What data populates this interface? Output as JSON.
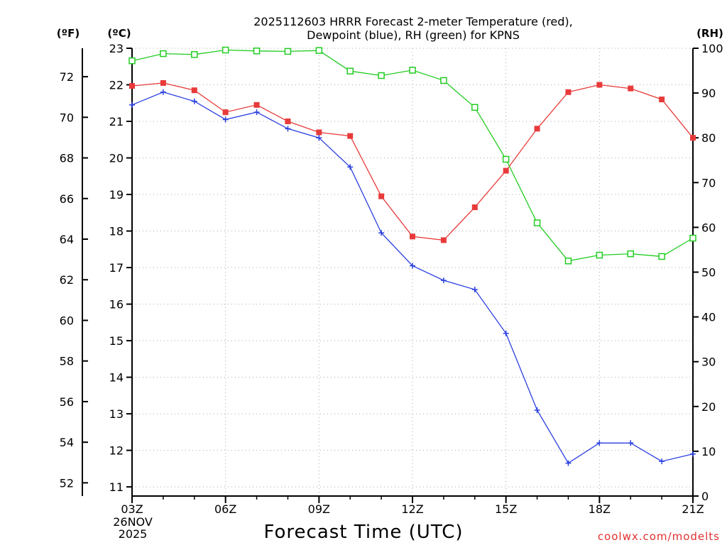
{
  "chart_data": {
    "type": "line",
    "title_line1": "2025112603 HRRR Forecast 2-meter Temperature (red),",
    "title_line2": "Dewpoint (blue), RH (green) for KPNS",
    "unit_f": "(ºF)",
    "unit_c": "(ºC)",
    "unit_rh": "(RH)",
    "xlabel": "Forecast Time (UTC)",
    "date_line1": "26NOV",
    "date_line2": "2025",
    "credit": "coolwx.com/modelts",
    "x_hours": [
      3,
      4,
      5,
      6,
      7,
      8,
      9,
      10,
      11,
      12,
      13,
      14,
      15,
      16,
      17,
      18,
      19,
      20,
      21
    ],
    "x_ticks": [
      {
        "hour": 3,
        "label": "03Z"
      },
      {
        "hour": 6,
        "label": "06Z"
      },
      {
        "hour": 9,
        "label": "09Z"
      },
      {
        "hour": 12,
        "label": "12Z"
      },
      {
        "hour": 15,
        "label": "15Z"
      },
      {
        "hour": 18,
        "label": "18Z"
      },
      {
        "hour": 21,
        "label": "21Z"
      }
    ],
    "xlim": [
      3,
      21
    ],
    "ylim_c": [
      10.75,
      23
    ],
    "ylim_rh": [
      0,
      100
    ],
    "c_ticks": [
      11,
      12,
      13,
      14,
      15,
      16,
      17,
      18,
      19,
      20,
      21,
      22,
      23
    ],
    "f_ticks": [
      52,
      54,
      56,
      58,
      60,
      62,
      64,
      66,
      68,
      70,
      72
    ],
    "rh_ticks": [
      0,
      10,
      20,
      30,
      40,
      50,
      60,
      70,
      80,
      90,
      100
    ],
    "series": [
      {
        "name": "Temperature",
        "color": "#e83a3a",
        "marker": "filled-square",
        "values_c": [
          21.97,
          22.05,
          21.85,
          21.25,
          21.45,
          21.0,
          20.7,
          20.6,
          18.95,
          17.85,
          17.75,
          18.65,
          19.65,
          20.8,
          21.8,
          22.0,
          21.9,
          21.6,
          20.55
        ]
      },
      {
        "name": "Dewpoint",
        "color": "#2a3fe0",
        "marker": "plus",
        "values_c": [
          21.45,
          21.8,
          21.55,
          21.05,
          21.25,
          20.8,
          20.55,
          19.75,
          17.95,
          17.05,
          16.65,
          16.4,
          15.2,
          13.1,
          11.65,
          12.2,
          12.2,
          11.7,
          11.9
        ]
      },
      {
        "name": "RH",
        "color": "#22cc22",
        "marker": "open-square",
        "values_rh": [
          97.2,
          98.8,
          98.6,
          99.6,
          99.4,
          99.3,
          99.5,
          94.9,
          93.9,
          95.1,
          92.8,
          86.8,
          75.2,
          61.0,
          52.5,
          53.8,
          54.1,
          53.5,
          57.6
        ]
      }
    ]
  }
}
